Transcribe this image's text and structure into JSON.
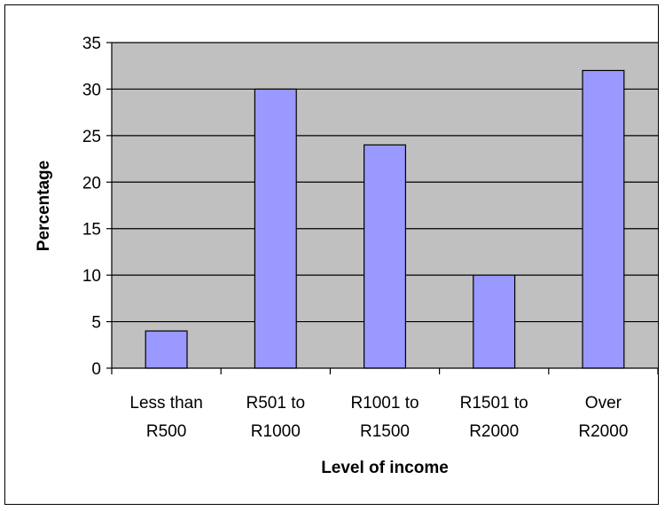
{
  "chart_data": {
    "type": "bar",
    "categories": [
      [
        "Less than",
        "R500"
      ],
      [
        "R501 to",
        "R1000"
      ],
      [
        "R1001 to",
        "R1500"
      ],
      [
        "R1501 to",
        "R2000"
      ],
      [
        "Over",
        "R2000"
      ]
    ],
    "values": [
      4,
      30,
      24,
      10,
      32
    ],
    "title": "",
    "xlabel": "Level of income",
    "ylabel": "Percentage",
    "ylim": [
      0,
      35
    ],
    "yticks": [
      "0",
      "5",
      "10",
      "15",
      "20",
      "25",
      "30",
      "35"
    ],
    "grid": true,
    "legend": "none",
    "colors": {
      "bar_fill": "#9999ff",
      "plot_background": "#c0c0c0",
      "gridline": "#000000"
    }
  }
}
